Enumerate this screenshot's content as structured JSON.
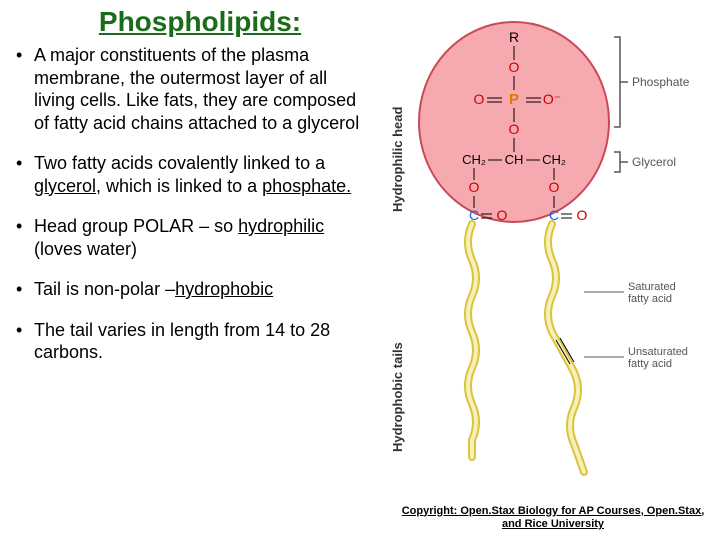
{
  "title": "Phospholipids:",
  "title_color": "#1a6b1a",
  "bullets": [
    {
      "text_parts": [
        {
          "t": "A major constituents of the plasma membrane, the outermost layer of all living cells. Like fats, they are composed of fatty acid chains attached to a glycerol",
          "style": ""
        }
      ]
    },
    {
      "text_parts": [
        {
          "t": "Two fatty acids covalently linked to a ",
          "style": ""
        },
        {
          "t": "glycerol,",
          "style": "underline"
        },
        {
          "t": " which is linked to a ",
          "style": ""
        },
        {
          "t": "phosphate.",
          "style": "underline"
        }
      ]
    },
    {
      "text_parts": [
        {
          "t": "Head group POLAR – so ",
          "style": ""
        },
        {
          "t": "hydrophilic",
          "style": "underline"
        },
        {
          "t": " (loves water)",
          "style": ""
        }
      ]
    },
    {
      "text_parts": [
        {
          "t": "Tail is non-polar –",
          "style": ""
        },
        {
          "t": "hydrophobic",
          "style": "underline"
        }
      ]
    },
    {
      "text_parts": [
        {
          "t": "The tail varies in length from 14 to 28 carbons.",
          "style": ""
        }
      ]
    }
  ],
  "copyright": "Copyright: Open.Stax Biology for AP Courses, Open.Stax, and Rice University",
  "diagram": {
    "head_label_rotated": "Hydrophilic head",
    "tail_label_rotated": "Hydrophobic tails",
    "phosphate_label": "Phosphate",
    "glycerol_label": "Glycerol",
    "saturated_label": "Saturated fatty acid",
    "unsaturated_label": "Unsaturated fatty acid",
    "atoms": {
      "R": "R",
      "O": "O",
      "P": "P",
      "C": "C",
      "CH2": "CH₂",
      "CH": "CH"
    },
    "colors": {
      "head_fill": "#f7a9b0",
      "head_stroke": "#c94a56",
      "atom_P": "#d97b00",
      "atom_O": "#cc0000",
      "atom_C": "#0066ff",
      "atom_text": "#000000",
      "tail_stroke": "#d9c43f",
      "tail_fill": "#f6f0b8",
      "bracket": "#555555",
      "label_text": "#555555"
    }
  }
}
